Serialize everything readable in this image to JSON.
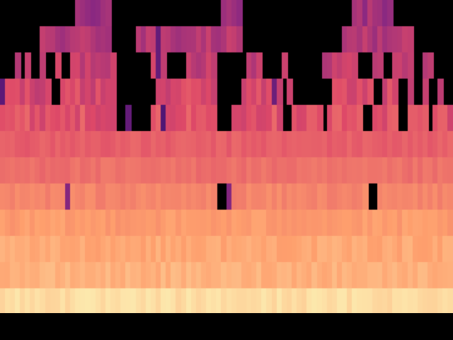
{
  "heatmap": {
    "columns": 90,
    "rows": 12,
    "colormap": [
      "#000000",
      "#3b0f70",
      "#8c2981",
      "#de4968",
      "#fe9f6d",
      "#fcfdbf"
    ],
    "background": "#000000",
    "band_levels": [
      0.93,
      0.84,
      0.82,
      0.79,
      0.74,
      0.69,
      0.65,
      0.62,
      0.58,
      0.54,
      0.49,
      0.45
    ],
    "black_regions": [
      [
        0,
        0,
        6,
        2
      ],
      [
        6,
        0,
        8,
        3
      ],
      [
        8,
        0,
        10,
        1
      ],
      [
        10,
        0,
        13,
        1
      ],
      [
        13,
        0,
        15,
        1
      ],
      [
        22,
        0,
        27,
        2
      ],
      [
        23,
        0,
        25,
        3
      ],
      [
        27,
        0,
        32,
        1
      ],
      [
        32,
        0,
        38,
        1
      ],
      [
        38,
        0,
        40,
        1
      ],
      [
        40,
        0,
        43,
        1
      ],
      [
        42,
        0,
        44,
        1
      ],
      [
        48,
        0,
        58,
        2
      ],
      [
        58,
        0,
        65,
        2
      ],
      [
        65,
        0,
        68,
        2
      ],
      [
        68,
        0,
        70,
        1
      ],
      [
        78,
        0,
        80,
        1
      ],
      [
        80,
        0,
        82,
        1
      ],
      [
        82,
        0,
        90,
        2
      ],
      [
        0,
        2,
        3,
        3
      ],
      [
        4,
        2,
        5,
        3
      ],
      [
        9,
        2,
        11,
        3
      ],
      [
        12,
        2,
        14,
        3
      ],
      [
        25,
        2,
        30,
        4
      ],
      [
        33,
        2,
        37,
        3
      ],
      [
        43,
        2,
        45,
        4
      ],
      [
        45,
        2,
        49,
        3
      ],
      [
        52,
        2,
        56,
        3
      ],
      [
        57,
        2,
        60,
        3
      ],
      [
        60,
        2,
        64,
        4
      ],
      [
        71,
        2,
        74,
        3
      ],
      [
        76,
        2,
        78,
        3
      ],
      [
        82,
        2,
        84,
        4
      ],
      [
        86,
        2,
        88,
        3
      ],
      [
        88,
        2,
        90,
        4
      ],
      [
        10,
        3,
        12,
        4
      ],
      [
        23,
        3,
        25,
        5
      ],
      [
        29,
        3,
        31,
        4
      ],
      [
        45,
        3,
        48,
        4
      ],
      [
        56,
        3,
        57,
        5
      ],
      [
        58,
        3,
        60,
        4
      ],
      [
        64,
        3,
        66,
        4
      ],
      [
        74,
        3,
        76,
        4
      ],
      [
        79,
        3,
        81,
        5
      ],
      [
        85,
        3,
        87,
        4
      ],
      [
        26,
        4,
        28,
        5
      ],
      [
        28,
        4,
        30,
        5
      ],
      [
        43,
        4,
        46,
        5
      ],
      [
        56,
        4,
        58,
        5
      ],
      [
        64,
        4,
        65,
        5
      ],
      [
        72,
        4,
        74,
        5
      ],
      [
        85,
        4,
        86,
        5
      ],
      [
        43,
        7,
        45,
        8
      ],
      [
        73,
        7,
        75,
        8
      ],
      [
        0,
        12,
        90,
        13
      ]
    ],
    "hot_spots": [
      [
        0,
        2,
        1,
        4,
        0.28
      ],
      [
        31,
        1,
        32,
        3,
        0.3
      ],
      [
        25,
        3,
        26,
        5,
        0.3
      ],
      [
        32,
        4,
        33,
        5,
        0.25
      ],
      [
        54,
        3,
        55,
        4,
        0.32
      ],
      [
        79,
        0,
        80,
        1,
        0.26
      ],
      [
        13,
        7,
        14,
        8,
        0.38
      ],
      [
        45,
        7,
        46,
        8,
        0.38
      ]
    ]
  }
}
